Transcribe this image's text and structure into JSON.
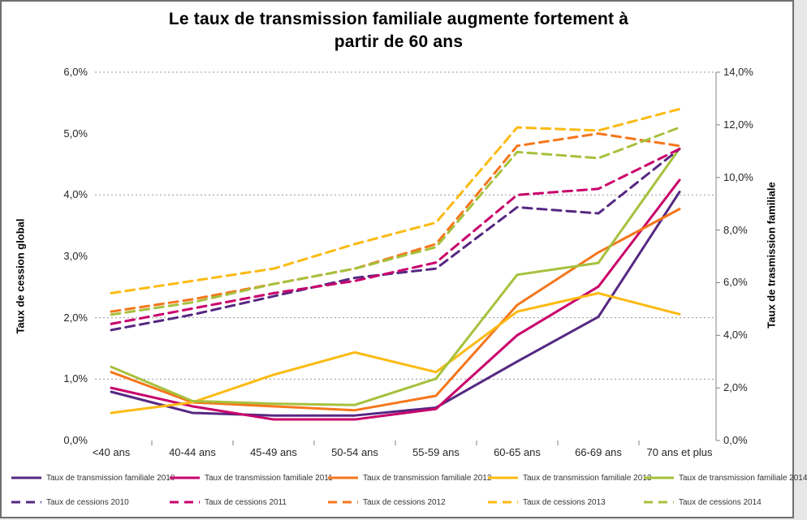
{
  "title": "Le taux de transmission familiale augmente fortement à\npartir de 60 ans",
  "chart_data": {
    "type": "line",
    "categories": [
      "<40 ans",
      "40-44 ans",
      "45-49 ans",
      "50-54 ans",
      "55-59 ans",
      "60-65 ans",
      "66-69 ans",
      "70 ans et plus"
    ],
    "left_axis": {
      "title": "Taux de cession global",
      "min": 0,
      "max": 6,
      "tick_labels": [
        "6,0%",
        "5,0%",
        "4,0%",
        "3,0%",
        "2,0%",
        "1,0%",
        "0,0%"
      ],
      "tick_values": [
        6,
        5,
        4,
        3,
        2,
        1,
        0
      ]
    },
    "right_axis": {
      "title": "Taux de trasmission familiale",
      "min": 0,
      "max": 14,
      "tick_labels": [
        "14,0%",
        "12,0%",
        "10,0%",
        "8,0%",
        "6,0%",
        "4,0%",
        "2,0%",
        "0,0%"
      ],
      "tick_values": [
        14,
        12,
        10,
        8,
        6,
        4,
        2,
        0
      ]
    },
    "gridlines_left_values": [
      6,
      4,
      2,
      1
    ],
    "grid_color": "#999999",
    "axis_color": "#808080",
    "legend_position": "bottom",
    "series": [
      {
        "name": "Taux de transmission familiale 2010",
        "year": "2010",
        "kind": "transmission",
        "axis": "right",
        "style": "solid",
        "color": "#562882",
        "values": [
          1.85,
          1.05,
          0.95,
          0.95,
          1.25,
          3.0,
          4.7,
          9.45
        ]
      },
      {
        "name": "Taux de transmission familiale 2011",
        "year": "2011",
        "kind": "transmission",
        "axis": "right",
        "style": "solid",
        "color": "#C9006B",
        "values": [
          2.0,
          1.3,
          0.8,
          0.8,
          1.2,
          4.0,
          5.85,
          9.9
        ]
      },
      {
        "name": "Taux de transmission familiale 2012",
        "year": "2012",
        "kind": "transmission",
        "axis": "right",
        "style": "solid",
        "color": "#F5761B",
        "values": [
          2.6,
          1.45,
          1.3,
          1.15,
          1.7,
          5.15,
          7.15,
          8.8
        ]
      },
      {
        "name": "Taux de transmission familiale 2013",
        "year": "2013",
        "kind": "transmission",
        "axis": "right",
        "style": "solid",
        "color": "#FCBA12",
        "values": [
          1.05,
          1.45,
          2.5,
          3.35,
          2.6,
          4.9,
          5.6,
          4.8
        ]
      },
      {
        "name": "Taux de transmission familiale 2014",
        "year": "2014",
        "kind": "transmission",
        "axis": "right",
        "style": "solid",
        "color": "#A6C13D",
        "values": [
          2.8,
          1.5,
          1.4,
          1.35,
          2.35,
          6.3,
          6.75,
          11.1
        ]
      },
      {
        "name": "Taux de cessions 2010",
        "year": "2010",
        "kind": "cessions",
        "axis": "left",
        "style": "dashed",
        "color": "#562882",
        "values": [
          1.8,
          2.05,
          2.35,
          2.65,
          2.8,
          3.8,
          3.7,
          4.75
        ]
      },
      {
        "name": "Taux de cessions 2011",
        "year": "2011",
        "kind": "cessions",
        "axis": "left",
        "style": "dashed",
        "color": "#C9006B",
        "values": [
          1.9,
          2.15,
          2.4,
          2.6,
          2.9,
          4.0,
          4.1,
          4.75
        ]
      },
      {
        "name": "Taux de cessions 2012",
        "year": "2012",
        "kind": "cessions",
        "axis": "left",
        "style": "dashed",
        "color": "#F5761B",
        "values": [
          2.1,
          2.3,
          2.55,
          2.8,
          3.2,
          4.8,
          5.0,
          4.8
        ]
      },
      {
        "name": "Taux de cessions 2013",
        "year": "2013",
        "kind": "cessions",
        "axis": "left",
        "style": "dashed",
        "color": "#FCBA12",
        "values": [
          2.4,
          2.6,
          2.8,
          3.2,
          3.55,
          5.1,
          5.05,
          5.4
        ]
      },
      {
        "name": "Taux de cessions 2014",
        "year": "2014",
        "kind": "cessions",
        "axis": "left",
        "style": "dashed",
        "color": "#A6C13D",
        "values": [
          2.05,
          2.25,
          2.55,
          2.8,
          3.15,
          4.7,
          4.6,
          5.1
        ]
      }
    ]
  }
}
